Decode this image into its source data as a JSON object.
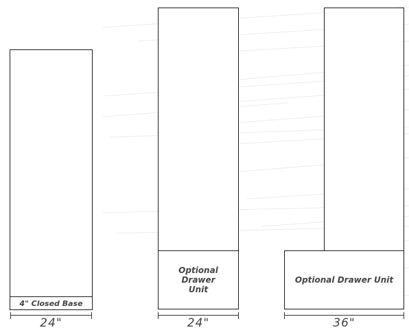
{
  "units": [
    {
      "base_label": "4\" Closed Base",
      "width_label": "24\""
    },
    {
      "base_label": "Optional Drawer Unit",
      "width_label": "24\""
    },
    {
      "base_label": "Optional Drawer Unit",
      "width_label": "36\""
    }
  ]
}
